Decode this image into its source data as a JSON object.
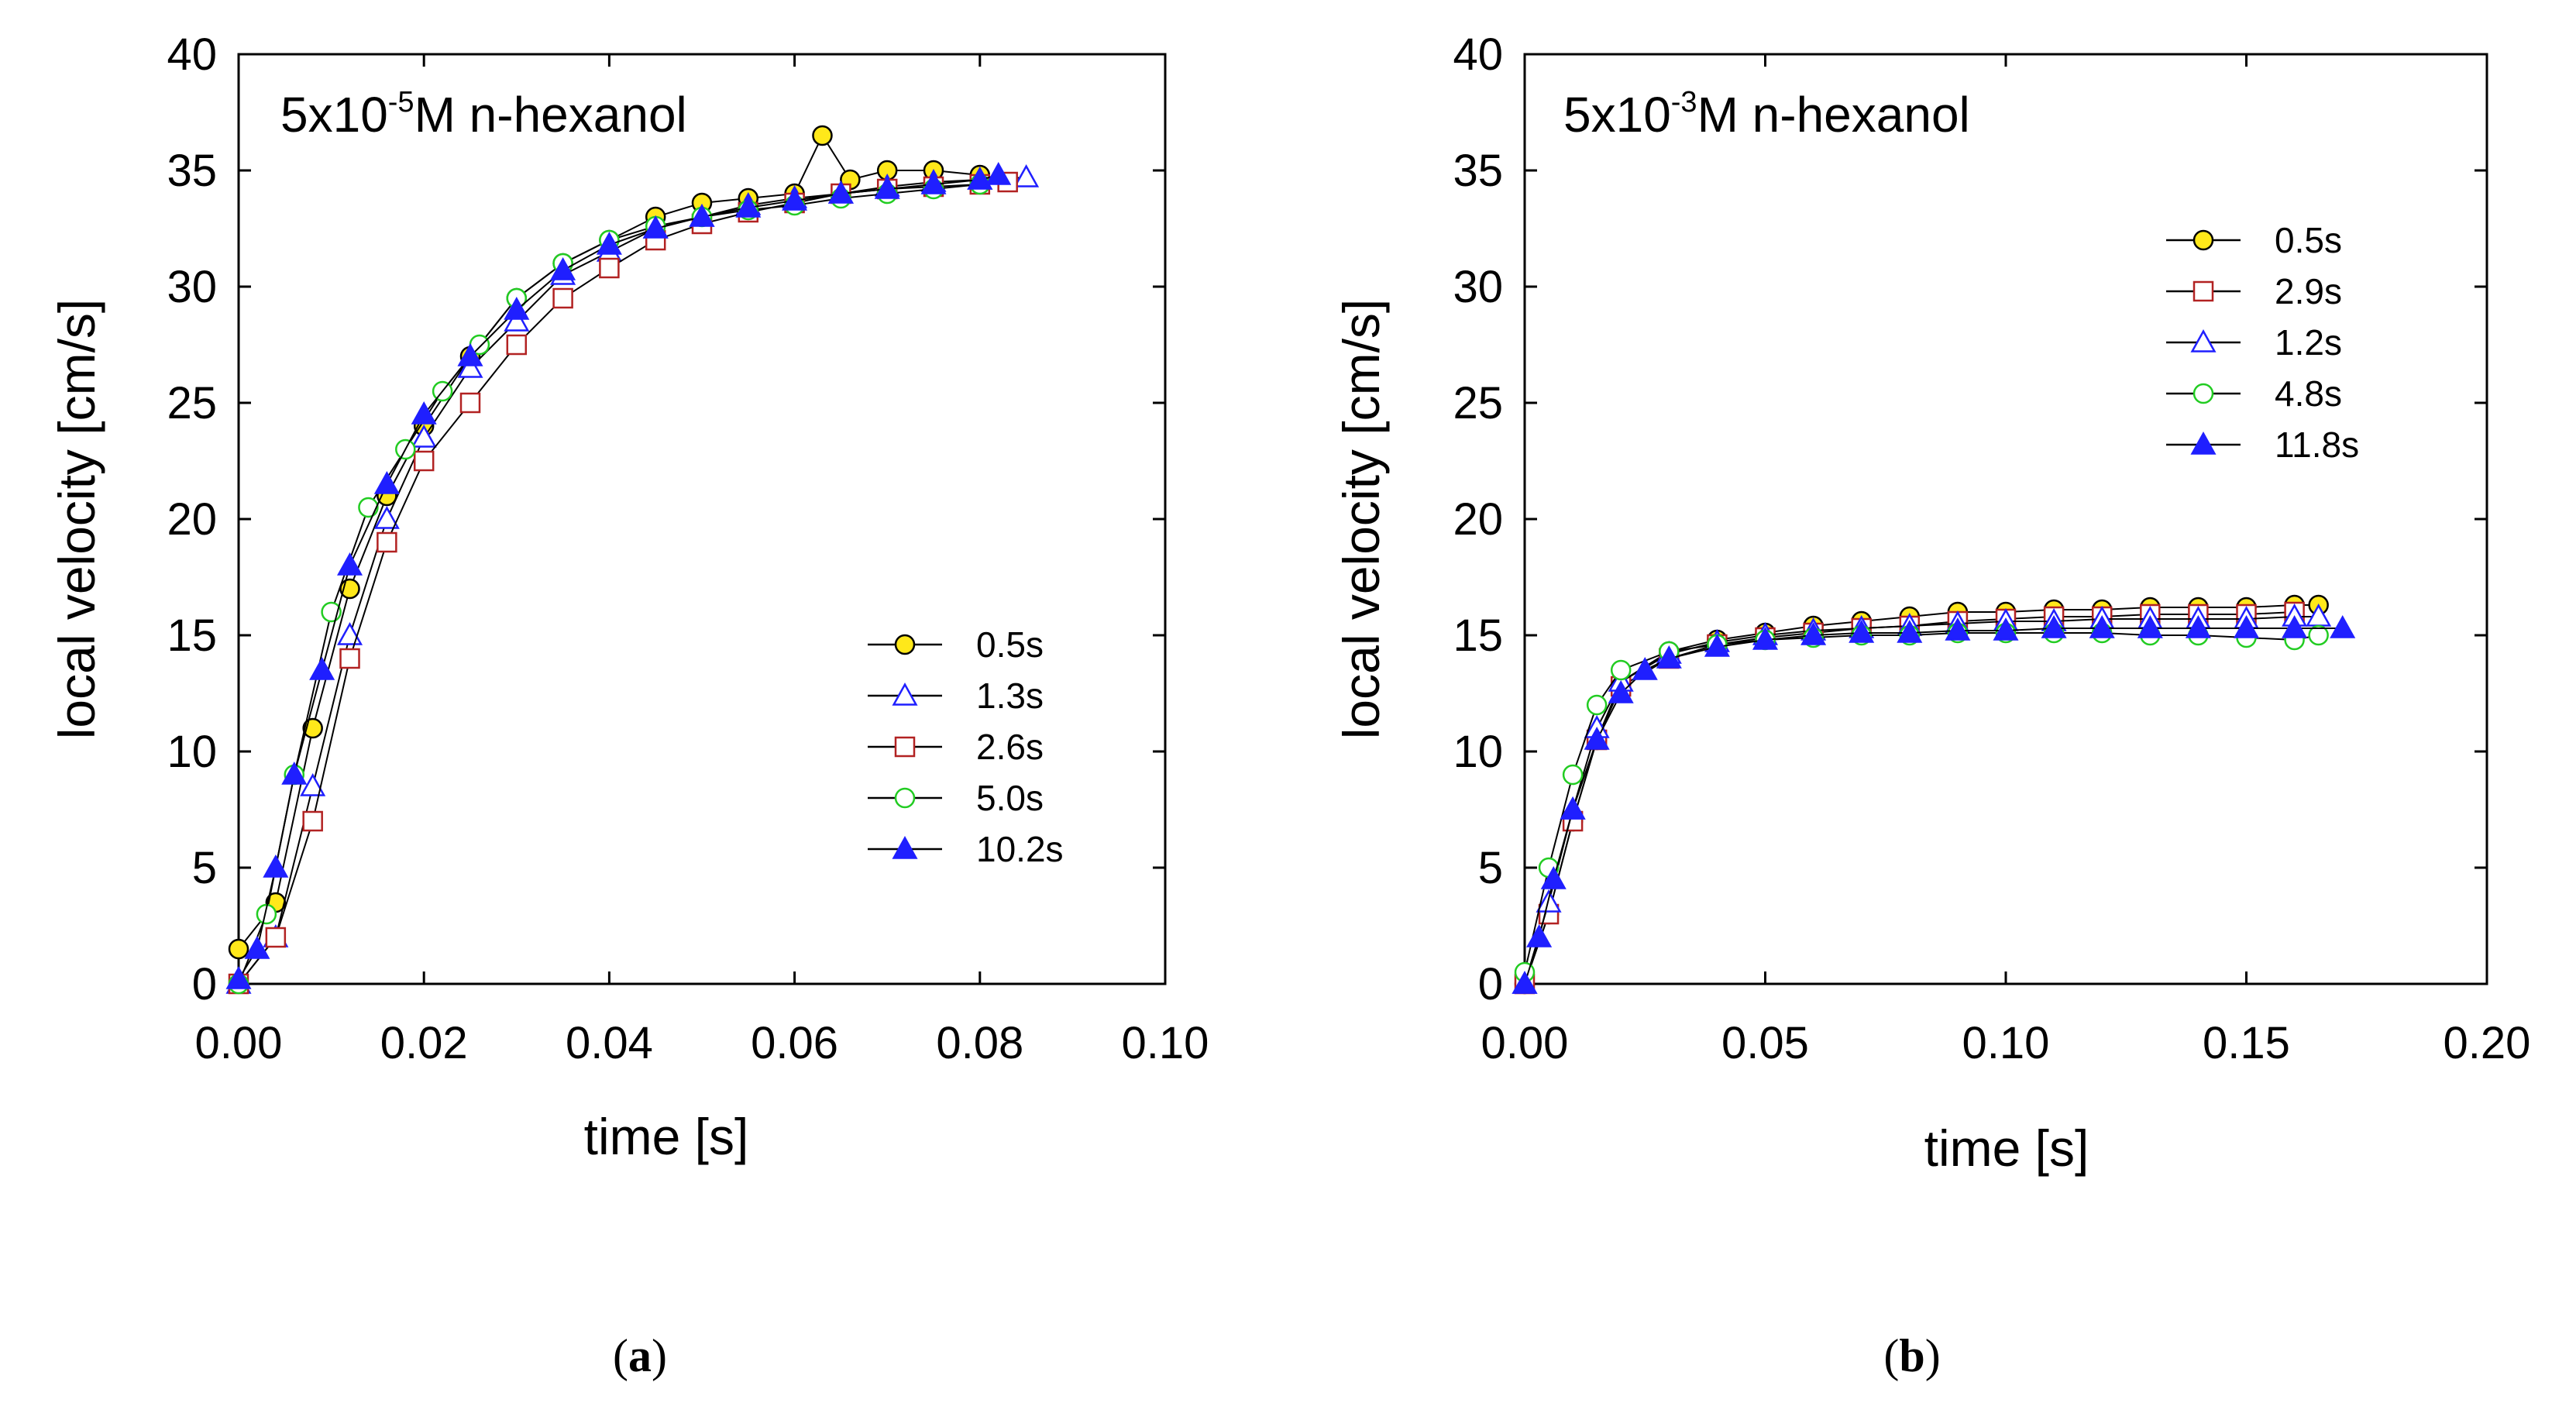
{
  "chart_data": [
    {
      "type": "line",
      "panel_label": "a",
      "annotation": {
        "prefix": "5x10",
        "exponent": "-5",
        "suffix": "M n-hexanol"
      },
      "xlabel": "time [s]",
      "ylabel": "local velocity [cm/s]",
      "xlim": [
        0,
        0.1
      ],
      "ylim": [
        0,
        40
      ],
      "xticks": [
        "0.00",
        "0.02",
        "0.04",
        "0.06",
        "0.08",
        "0.10"
      ],
      "yticks": [
        "0",
        "5",
        "10",
        "15",
        "20",
        "25",
        "30",
        "35",
        "40"
      ],
      "legend_position": "lower-right",
      "series": [
        {
          "name": "0.5s",
          "marker": "circle",
          "fill": "#ffe81a",
          "stroke": "#000000",
          "x": [
            0,
            0.004,
            0.008,
            0.012,
            0.016,
            0.02,
            0.025,
            0.03,
            0.035,
            0.04,
            0.045,
            0.05,
            0.055,
            0.06,
            0.063,
            0.066,
            0.07,
            0.075,
            0.08
          ],
          "y": [
            1.5,
            3.5,
            11,
            17,
            21,
            24,
            27,
            29.5,
            31,
            32,
            33,
            33.6,
            33.8,
            34,
            36.5,
            34.6,
            35,
            35,
            34.8
          ]
        },
        {
          "name": "1.3s",
          "marker": "triangle-open",
          "fill": "#ffffff",
          "stroke": "#1f1fff",
          "x": [
            0,
            0.004,
            0.008,
            0.012,
            0.016,
            0.02,
            0.025,
            0.03,
            0.035,
            0.04,
            0.045,
            0.05,
            0.055,
            0.06,
            0.065,
            0.07,
            0.075,
            0.08,
            0.085
          ],
          "y": [
            0,
            2,
            8.5,
            15,
            20,
            23.5,
            26.5,
            28.5,
            30.5,
            31.5,
            32.5,
            33,
            33.5,
            33.8,
            34,
            34.3,
            34.5,
            34.6,
            34.7
          ]
        },
        {
          "name": "2.6s",
          "marker": "square-open",
          "fill": "#ffffff",
          "stroke": "#b22222",
          "x": [
            0,
            0.004,
            0.008,
            0.012,
            0.016,
            0.02,
            0.025,
            0.03,
            0.035,
            0.04,
            0.045,
            0.05,
            0.055,
            0.06,
            0.065,
            0.07,
            0.075,
            0.08,
            0.083
          ],
          "y": [
            0,
            2,
            7,
            14,
            19,
            22.5,
            25,
            27.5,
            29.5,
            30.8,
            32,
            32.7,
            33.2,
            33.6,
            34,
            34.2,
            34.3,
            34.4,
            34.5
          ]
        },
        {
          "name": "5.0s",
          "marker": "circle-open",
          "fill": "#ffffff",
          "stroke": "#22cc22",
          "x": [
            0,
            0.003,
            0.006,
            0.01,
            0.014,
            0.018,
            0.022,
            0.026,
            0.03,
            0.035,
            0.04,
            0.045,
            0.05,
            0.055,
            0.06,
            0.065,
            0.07,
            0.075,
            0.08
          ],
          "y": [
            0,
            3,
            9,
            16,
            20.5,
            23,
            25.5,
            27.5,
            29.5,
            31,
            32,
            32.6,
            33,
            33.3,
            33.5,
            33.8,
            34,
            34.2,
            34.4
          ]
        },
        {
          "name": "10.2s",
          "marker": "triangle-filled",
          "fill": "#1f1fff",
          "stroke": "#1f1fff",
          "x": [
            0,
            0.002,
            0.004,
            0.006,
            0.009,
            0.012,
            0.016,
            0.02,
            0.025,
            0.03,
            0.035,
            0.04,
            0.045,
            0.05,
            0.055,
            0.06,
            0.065,
            0.07,
            0.075,
            0.08,
            0.082
          ],
          "y": [
            0.2,
            1.5,
            5,
            9,
            13.5,
            18,
            21.5,
            24.5,
            27,
            29,
            30.7,
            31.8,
            32.5,
            33,
            33.4,
            33.7,
            34,
            34.2,
            34.4,
            34.6,
            34.8
          ]
        }
      ]
    },
    {
      "type": "line",
      "panel_label": "b",
      "annotation": {
        "prefix": "5x10",
        "exponent": "-3",
        "suffix": "M n-hexanol"
      },
      "xlabel": "time [s]",
      "ylabel": "local velocity [cm/s]",
      "xlim": [
        0,
        0.2
      ],
      "ylim": [
        0,
        40
      ],
      "xticks": [
        "0.00",
        "0.05",
        "0.10",
        "0.15",
        "0.20"
      ],
      "yticks": [
        "0",
        "5",
        "10",
        "15",
        "20",
        "25",
        "30",
        "35",
        "40"
      ],
      "legend_position": "upper-right",
      "series": [
        {
          "name": "0.5s",
          "marker": "circle",
          "fill": "#ffe81a",
          "stroke": "#000000",
          "x": [
            0,
            0.005,
            0.01,
            0.015,
            0.02,
            0.03,
            0.04,
            0.05,
            0.06,
            0.07,
            0.08,
            0.09,
            0.1,
            0.11,
            0.12,
            0.13,
            0.14,
            0.15,
            0.16,
            0.165
          ],
          "y": [
            0,
            3,
            7,
            10.5,
            13,
            14.3,
            14.8,
            15.1,
            15.4,
            15.6,
            15.8,
            16,
            16,
            16.1,
            16.1,
            16.2,
            16.2,
            16.2,
            16.3,
            16.3
          ]
        },
        {
          "name": "2.9s",
          "marker": "square-open",
          "fill": "#ffffff",
          "stroke": "#b22222",
          "x": [
            0,
            0.005,
            0.01,
            0.015,
            0.02,
            0.03,
            0.04,
            0.05,
            0.06,
            0.07,
            0.08,
            0.09,
            0.1,
            0.11,
            0.12,
            0.13,
            0.14,
            0.15,
            0.16
          ],
          "y": [
            0,
            3,
            7,
            10.5,
            12.8,
            14,
            14.6,
            14.9,
            15.1,
            15.3,
            15.4,
            15.6,
            15.7,
            15.8,
            15.8,
            15.9,
            15.9,
            15.9,
            16
          ]
        },
        {
          "name": "1.2s",
          "marker": "triangle-open",
          "fill": "#ffffff",
          "stroke": "#1f1fff",
          "x": [
            0,
            0.005,
            0.01,
            0.015,
            0.02,
            0.03,
            0.04,
            0.05,
            0.06,
            0.07,
            0.08,
            0.09,
            0.1,
            0.11,
            0.12,
            0.13,
            0.14,
            0.15,
            0.16,
            0.165
          ],
          "y": [
            0,
            3.5,
            7.5,
            11,
            13,
            14.2,
            14.7,
            15,
            15.2,
            15.3,
            15.4,
            15.5,
            15.6,
            15.6,
            15.7,
            15.7,
            15.7,
            15.7,
            15.8,
            15.8
          ]
        },
        {
          "name": "4.8s",
          "marker": "circle-open",
          "fill": "#ffffff",
          "stroke": "#22cc22",
          "x": [
            0,
            0.005,
            0.01,
            0.015,
            0.02,
            0.03,
            0.04,
            0.05,
            0.06,
            0.07,
            0.08,
            0.09,
            0.1,
            0.11,
            0.12,
            0.13,
            0.14,
            0.15,
            0.16,
            0.165
          ],
          "y": [
            0.5,
            5,
            9,
            12,
            13.5,
            14.3,
            14.6,
            14.8,
            14.9,
            15,
            15,
            15.1,
            15.1,
            15.1,
            15.1,
            15,
            15,
            14.9,
            14.8,
            15
          ]
        },
        {
          "name": "11.8s",
          "marker": "triangle-filled",
          "fill": "#1f1fff",
          "stroke": "#1f1fff",
          "x": [
            0,
            0.003,
            0.006,
            0.01,
            0.015,
            0.02,
            0.025,
            0.03,
            0.04,
            0.05,
            0.06,
            0.07,
            0.08,
            0.09,
            0.1,
            0.11,
            0.12,
            0.13,
            0.14,
            0.15,
            0.16,
            0.17
          ],
          "y": [
            0,
            2,
            4.5,
            7.5,
            10.5,
            12.5,
            13.5,
            14,
            14.5,
            14.8,
            15,
            15.1,
            15.1,
            15.2,
            15.2,
            15.3,
            15.3,
            15.3,
            15.3,
            15.3,
            15.3,
            15.3
          ]
        }
      ]
    }
  ]
}
